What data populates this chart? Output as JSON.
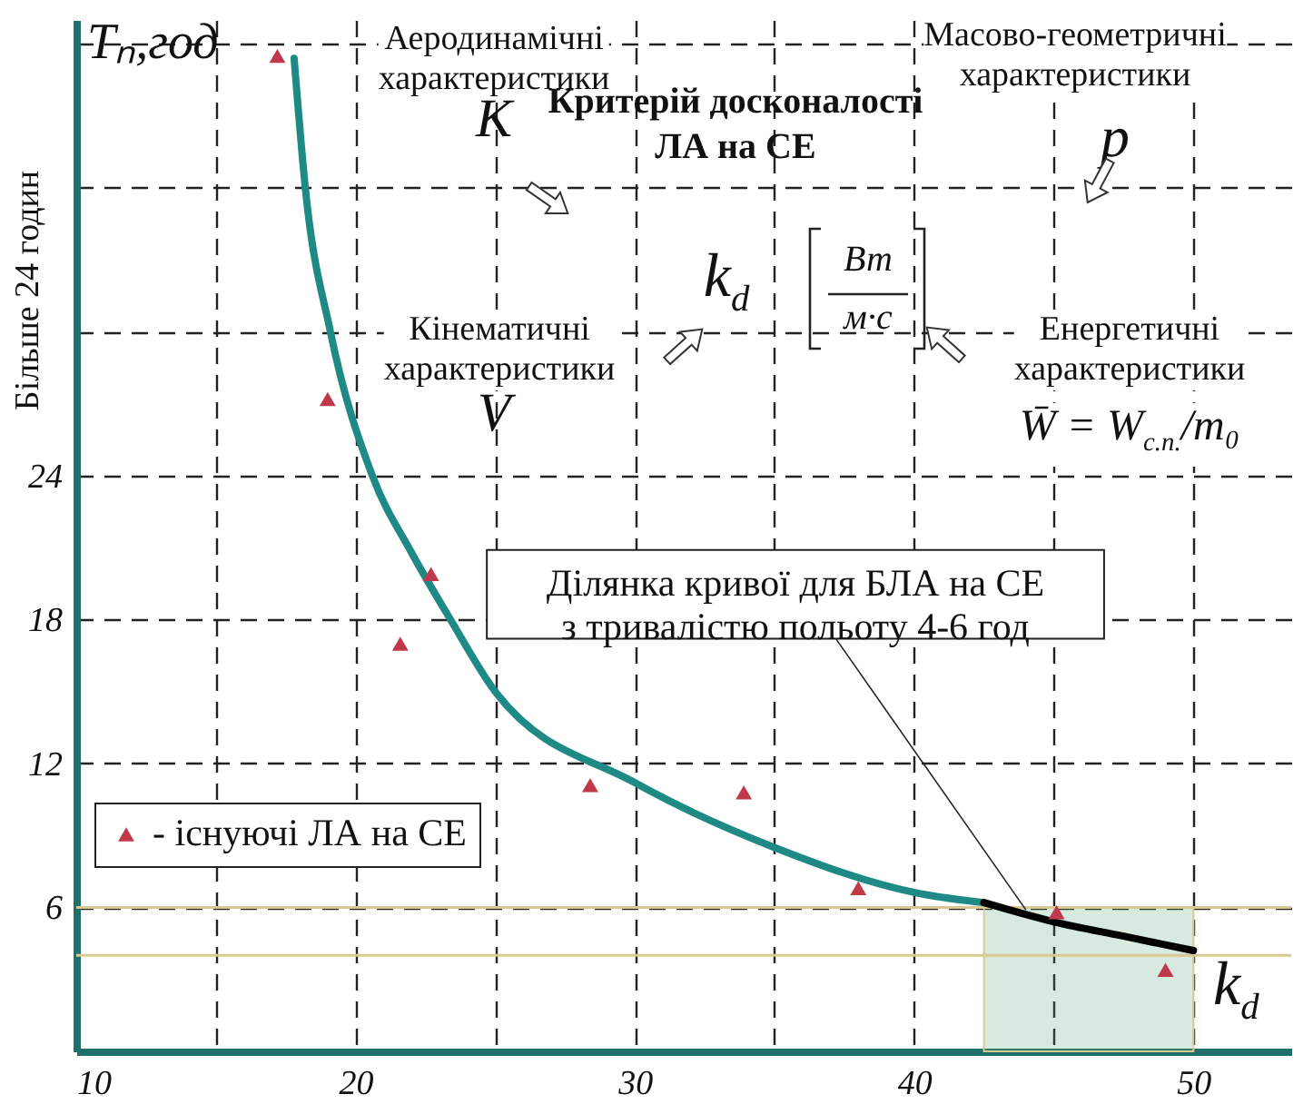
{
  "chart_data": {
    "type": "line",
    "xlabel": "k$_{d}$",
    "ylabel": "Tₙ,год",
    "xlim": [
      10,
      53.5
    ],
    "ylim": [
      0,
      43
    ],
    "xticks": [
      10,
      {
        "value": 15,
        "label": null
      },
      20,
      {
        "value": 25,
        "label": null
      },
      30,
      {
        "value": 35,
        "label": null
      },
      40,
      {
        "value": 45,
        "label": null
      },
      50
    ],
    "yticks": [
      6,
      12,
      18,
      24,
      {
        "value": 30,
        "label": null
      },
      {
        "value": 36,
        "label": null
      },
      {
        "value": 42,
        "label": null
      }
    ],
    "grid": true,
    "legend": "left",
    "series": [
      {
        "color": "#1f8a85",
        "x": [
          17.8,
          18.2,
          19.1,
          20.6,
          22.0,
          23.4,
          25.0,
          30.0,
          35.0,
          40.1,
          42.5
        ],
        "values": [
          41.4,
          36,
          30,
          24,
          20.8,
          18,
          15.0,
          11.2,
          8.5,
          6.6,
          6.2
        ]
      },
      {
        "color": "#000000",
        "x": [
          42.5,
          45,
          47.5,
          50
        ],
        "values": [
          6.2,
          5.4,
          4.8,
          4.2
        ]
      },
      {
        "type": "scatter",
        "name": "- існуючі ЛА на СЕ",
        "color": "#c0394a",
        "marker": "triangle",
        "x": [
          17.2,
          19.0,
          22.7,
          21.6,
          28.4,
          33.9,
          38.0,
          45.1,
          49.0
        ],
        "values": [
          41.5,
          27.2,
          19.9,
          17.0,
          11.1,
          10.8,
          6.8,
          5.8,
          3.4
        ]
      }
    ],
    "ref_lines": [
      {
        "axis": "y",
        "value": 6,
        "color": "#d9c88f"
      },
      {
        "axis": "y",
        "value": 4,
        "color": "#d9c88f"
      }
    ],
    "bands": [
      {
        "axis": "x",
        "from": 42.5,
        "to": 50,
        "color": "#4c9a70"
      }
    ],
    "annotations": [
      "Аеродинамічні\nхарактеристики",
      "K",
      "Критерій досконалості\nЛА на СЕ",
      "p",
      "Масово-геометричні\nхарактеристики",
      "k$_{d}$",
      "Вт",
      "м·с",
      "Кінематичні\nхарактеристики",
      "V",
      "Енергетичні\nхарактеристики",
      "W̄ = W$_{c.n.}$/m₀",
      "Більше 24 годин",
      {
        "text": "Ділянка кривої для  БЛА на СЕ\nз тривалістю польоту 4-6 год",
        "x": 44,
        "y": 5.9
      }
    ]
  }
}
